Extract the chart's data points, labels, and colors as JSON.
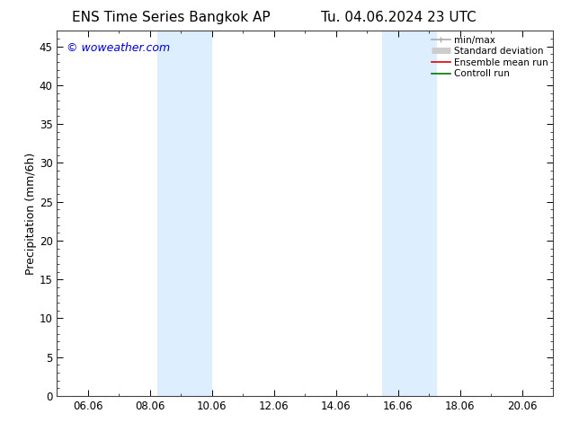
{
  "title_left": "ENS Time Series Bangkok AP",
  "title_right": "Tu. 04.06.2024 23 UTC",
  "ylabel": "Precipitation (mm/6h)",
  "watermark": "© woweather.com",
  "watermark_color": "#0000cc",
  "background_color": "#ffffff",
  "plot_bg_color": "#ffffff",
  "shaded_regions": [
    {
      "x_start": 8.25,
      "x_end": 10.0,
      "color": "#ddeeff"
    },
    {
      "x_start": 15.5,
      "x_end": 17.25,
      "color": "#ddeeff"
    }
  ],
  "xlim": [
    5.0,
    21.0
  ],
  "ylim": [
    0,
    47
  ],
  "xtick_labels": [
    "06.06",
    "08.06",
    "10.06",
    "12.06",
    "14.06",
    "16.06",
    "18.06",
    "20.06"
  ],
  "xtick_positions": [
    6.0,
    8.0,
    10.0,
    12.0,
    14.0,
    16.0,
    18.0,
    20.0
  ],
  "ytick_positions": [
    0,
    5,
    10,
    15,
    20,
    25,
    30,
    35,
    40,
    45
  ],
  "legend_entries": [
    {
      "label": "min/max",
      "color": "#aaaaaa",
      "lw": 1.2,
      "style": "line_with_bars"
    },
    {
      "label": "Standard deviation",
      "color": "#cccccc",
      "lw": 5,
      "style": "thick"
    },
    {
      "label": "Ensemble mean run",
      "color": "#dd0000",
      "lw": 1.2,
      "style": "solid"
    },
    {
      "label": "Controll run",
      "color": "#007700",
      "lw": 1.2,
      "style": "solid"
    }
  ],
  "title_fontsize": 11,
  "axis_label_fontsize": 9,
  "tick_fontsize": 8.5,
  "watermark_fontsize": 9,
  "legend_fontsize": 7.5
}
